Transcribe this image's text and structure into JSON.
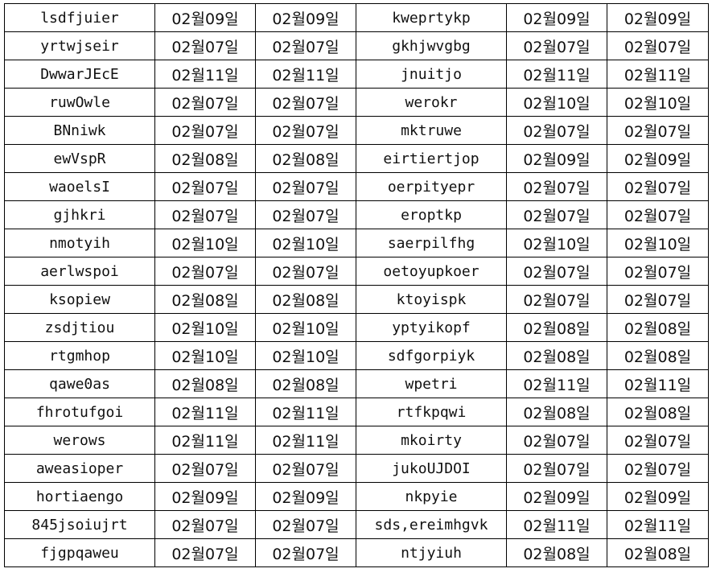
{
  "rows": [
    [
      "lsdfjuier",
      "02월09일",
      "02월09일",
      "kweprtykp",
      "02월09일",
      "02월09일"
    ],
    [
      "yrtwjseir",
      "02월07일",
      "02월07일",
      "gkhjwvgbg",
      "02월07일",
      "02월07일"
    ],
    [
      "DwwarJEcE",
      "02월11일",
      "02월11일",
      "jnuitjo",
      "02월11일",
      "02월11일"
    ],
    [
      "ruwOwle",
      "02월07일",
      "02월07일",
      "werokr",
      "02월10일",
      "02월10일"
    ],
    [
      "BNniwk",
      "02월07일",
      "02월07일",
      "mktruwe",
      "02월07일",
      "02월07일"
    ],
    [
      "ewVspR",
      "02월08일",
      "02월08일",
      "eirtiertjop",
      "02월09일",
      "02월09일"
    ],
    [
      "waoelsI",
      "02월07일",
      "02월07일",
      "oerpityepr",
      "02월07일",
      "02월07일"
    ],
    [
      "gjhkri",
      "02월07일",
      "02월07일",
      "eroptkp",
      "02월07일",
      "02월07일"
    ],
    [
      "nmotyih",
      "02월10일",
      "02월10일",
      "saerpilfhg",
      "02월10일",
      "02월10일"
    ],
    [
      "aerlwspoi",
      "02월07일",
      "02월07일",
      "oetoyupkoer",
      "02월07일",
      "02월07일"
    ],
    [
      "ksopiew",
      "02월08일",
      "02월08일",
      "ktoyispk",
      "02월07일",
      "02월07일"
    ],
    [
      "zsdjtiou",
      "02월10일",
      "02월10일",
      "yptyikopf",
      "02월08일",
      "02월08일"
    ],
    [
      "rtgmhop",
      "02월10일",
      "02월10일",
      "sdfgorpiyk",
      "02월08일",
      "02월08일"
    ],
    [
      "qawe0as",
      "02월08일",
      "02월08일",
      "wpetri",
      "02월11일",
      "02월11일"
    ],
    [
      "fhrotufgoi",
      "02월11일",
      "02월11일",
      "rtfkpqwi",
      "02월08일",
      "02월08일"
    ],
    [
      "werows",
      "02월11일",
      "02월11일",
      "mkoirty",
      "02월07일",
      "02월07일"
    ],
    [
      "aweasioper",
      "02월07일",
      "02월07일",
      "jukoUJDOI",
      "02월07일",
      "02월07일"
    ],
    [
      "hortiaengo",
      "02월09일",
      "02월09일",
      "nkpyie",
      "02월09일",
      "02월09일"
    ],
    [
      "845jsoiujrt",
      "02월07일",
      "02월07일",
      "sds,ereimhgvk",
      "02월11일",
      "02월11일"
    ],
    [
      "fjgpqaweu",
      "02월07일",
      "02월07일",
      "ntjyiuh",
      "02월08일",
      "02월08일"
    ]
  ]
}
